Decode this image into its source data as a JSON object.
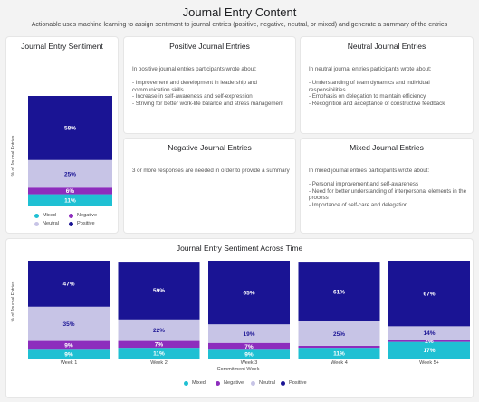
{
  "page": {
    "title": "Journal Entry Content",
    "subtitle": "Actionable uses machine learning to assign sentiment to journal entries (positive, negative, neutral, or mixed) and generate a summary of the entries"
  },
  "colors": {
    "positive": "#1a1494",
    "neutral": "#c7c4e6",
    "negative": "#8d2dbd",
    "mixed": "#1fc0d3"
  },
  "sentiment_card": {
    "title": "Journal Entry Sentiment",
    "ylabel": "% of Journal Entries",
    "legend": [
      "Mixed",
      "Negative",
      "Neutral",
      "Positive"
    ]
  },
  "cards": {
    "positive": {
      "title": "Positive Journal Entries",
      "text": "In positive journal entries participants wrote about:\n\n- Improvement and development in leadership and communication skills\n- Increase in self-awareness and self-expression\n- Striving for better work-life balance and stress management"
    },
    "neutral": {
      "title": "Neutral Journal Entries",
      "text": "In neutral journal entries participants wrote about:\n\n- Understanding of team dynamics and individual responsibilities\n- Emphasis on delegation to maintain efficiency\n- Recognition and acceptance of constructive feedback"
    },
    "negative": {
      "title": "Negative Journal Entries",
      "text": "3 or more responses are needed in order to provide a summary"
    },
    "mixed": {
      "title": "Mixed Journal Entries",
      "text": "In mixed journal entries participants wrote about:\n\n- Personal improvement and self-awareness\n- Need for better understanding of interpersonal elements in the process\n- Importance of self-care and delegation"
    }
  },
  "time_card": {
    "title": "Journal Entry Sentiment Across Time",
    "xlabel": "Commitment Week",
    "ylabel": "% of Journal Entries",
    "legend": [
      "Mixed",
      "Negative",
      "Neutral",
      "Positive"
    ]
  },
  "chart_data": [
    {
      "type": "bar",
      "stacked": true,
      "title": "Journal Entry Sentiment",
      "ylabel": "% of Journal Entries",
      "categories": [
        ""
      ],
      "series": [
        {
          "name": "Mixed",
          "values": [
            11
          ]
        },
        {
          "name": "Negative",
          "values": [
            6
          ]
        },
        {
          "name": "Neutral",
          "values": [
            25
          ]
        },
        {
          "name": "Positive",
          "values": [
            58
          ]
        }
      ],
      "ylim": [
        0,
        100
      ],
      "legend": "bottom"
    },
    {
      "type": "bar",
      "stacked": true,
      "title": "Journal Entry Sentiment Across Time",
      "xlabel": "Commitment Week",
      "ylabel": "% of Journal Entries",
      "categories": [
        "Week 1",
        "Week 2",
        "Week 3",
        "Week 4",
        "Week 5+"
      ],
      "series": [
        {
          "name": "Mixed",
          "values": [
            9,
            11,
            9,
            11,
            17
          ]
        },
        {
          "name": "Negative",
          "values": [
            9,
            7,
            7,
            2,
            2
          ]
        },
        {
          "name": "Neutral",
          "values": [
            35,
            22,
            19,
            25,
            14
          ]
        },
        {
          "name": "Positive",
          "values": [
            47,
            59,
            65,
            61,
            67
          ]
        }
      ],
      "segment_labels": [
        [
          "9%",
          "9%",
          "35%",
          "47%"
        ],
        [
          "11%",
          "7%",
          "22%",
          "59%"
        ],
        [
          "9%",
          "7%",
          "19%",
          "65%"
        ],
        [
          "11%",
          "",
          "25%",
          "61%"
        ],
        [
          "17%",
          "2%",
          "14%",
          "67%"
        ]
      ],
      "ylim": [
        0,
        100
      ],
      "legend": "bottom"
    }
  ]
}
